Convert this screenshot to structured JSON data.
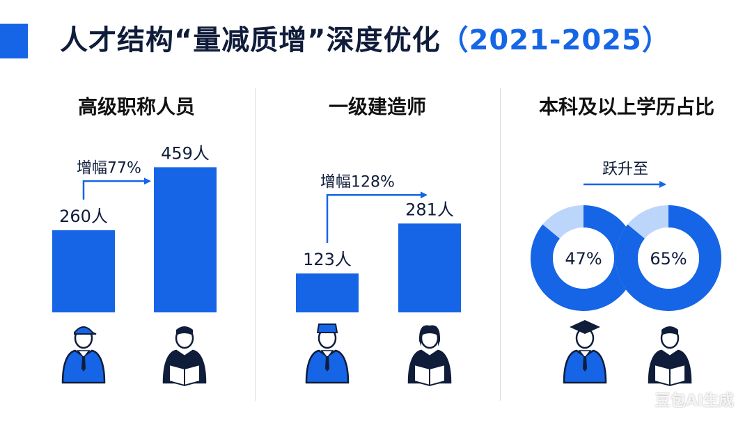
{
  "title": {
    "main": "人才结构“量减质增”深度优化",
    "open_paren": "（",
    "years": "2021-2025",
    "close_paren": "）"
  },
  "colors": {
    "accent": "#1565e6",
    "light_accent": "#bcd6fb",
    "dark_text": "#0f1c3a",
    "divider": "#d8dce3"
  },
  "chart_data": [
    {
      "type": "bar",
      "title": "高级职称人员",
      "categories": [
        "",
        ""
      ],
      "values": [
        260,
        459
      ],
      "value_labels": [
        "260人",
        "459人"
      ],
      "annotation": "增幅77%",
      "ylim": [
        0,
        500
      ]
    },
    {
      "type": "bar",
      "title": "一级建造师",
      "categories": [
        "",
        ""
      ],
      "values": [
        123,
        281
      ],
      "value_labels": [
        "123人",
        "281人"
      ],
      "annotation": "增幅128%",
      "ylim": [
        0,
        500
      ]
    },
    {
      "type": "pie",
      "title": "本科及以上学历占比",
      "values": [
        47,
        65
      ],
      "value_labels": [
        "47%",
        "65%"
      ],
      "annotation": "跃升至",
      "ylim": [
        0,
        100
      ]
    }
  ],
  "icons": [
    "worker-cap-icon",
    "reader-suit-icon",
    "officer-cap-icon",
    "reader-woman-icon",
    "graduate-cap-icon",
    "reader-suit-icon"
  ],
  "watermark": "豆包AI生成"
}
